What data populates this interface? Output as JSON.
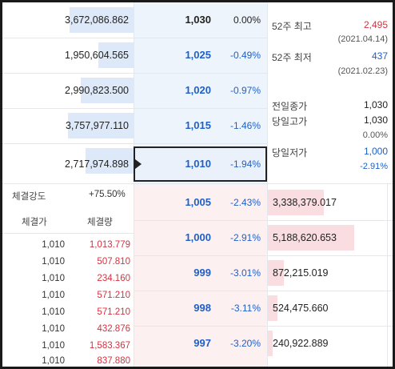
{
  "ask_rows": [
    {
      "volume": "3,672,086.862",
      "price": "1,030",
      "change": "0.00%"
    },
    {
      "volume": "1,950,604.565",
      "price": "1,025",
      "change": "-0.49%"
    },
    {
      "volume": "2,990,823.500",
      "price": "1,020",
      "change": "-0.97%"
    },
    {
      "volume": "3,757,977.110",
      "price": "1,015",
      "change": "-1.46%"
    },
    {
      "volume": "2,717,974.898",
      "price": "1,010",
      "change": "-1.94%"
    }
  ],
  "bid_rows": [
    {
      "volume": "3,338,379.017",
      "price": "1,005",
      "change": "-2.43%"
    },
    {
      "volume": "5,188,620.653",
      "price": "1,000",
      "change": "-2.91%"
    },
    {
      "volume": "872,215.019",
      "price": "999",
      "change": "-3.01%"
    },
    {
      "volume": "524,475.660",
      "price": "998",
      "change": "-3.11%"
    },
    {
      "volume": "240,922.889",
      "price": "997",
      "change": "-3.20%"
    }
  ],
  "info": {
    "week52_high_label": "52주 최고",
    "week52_high_value": "2,495",
    "week52_high_date": "(2021.04.14)",
    "week52_low_label": "52주 최저",
    "week52_low_value": "437",
    "week52_low_date": "(2021.02.23)",
    "prev_close_label": "전일종가",
    "prev_close_value": "1,030",
    "day_high_label": "당일고가",
    "day_high_value": "1,030",
    "day_high_pct": "0.00%",
    "day_low_label": "당일저가",
    "day_low_value": "1,000",
    "day_low_pct": "-2.91%"
  },
  "strength": {
    "label": "체결강도",
    "value": "+75.50%"
  },
  "trades": {
    "price_header": "체결가",
    "qty_header": "체결량",
    "rows": [
      {
        "price": "1,010",
        "qty": "1,013.779"
      },
      {
        "price": "1,010",
        "qty": "507.810"
      },
      {
        "price": "1,010",
        "qty": "234.160"
      },
      {
        "price": "1,010",
        "qty": "571.210"
      },
      {
        "price": "1,010",
        "qty": "571.210"
      },
      {
        "price": "1,010",
        "qty": "432.876"
      },
      {
        "price": "1,010",
        "qty": "1,583.367"
      },
      {
        "price": "1,010",
        "qty": "837.880"
      }
    ]
  },
  "colors": {
    "ask_bg": "#eef4fc",
    "bid_bg": "#fdf0f1",
    "ask_bar": "#dde9f8",
    "bid_bar": "#f9dde0",
    "up": "#d9303e",
    "down": "#1f5fc8"
  }
}
